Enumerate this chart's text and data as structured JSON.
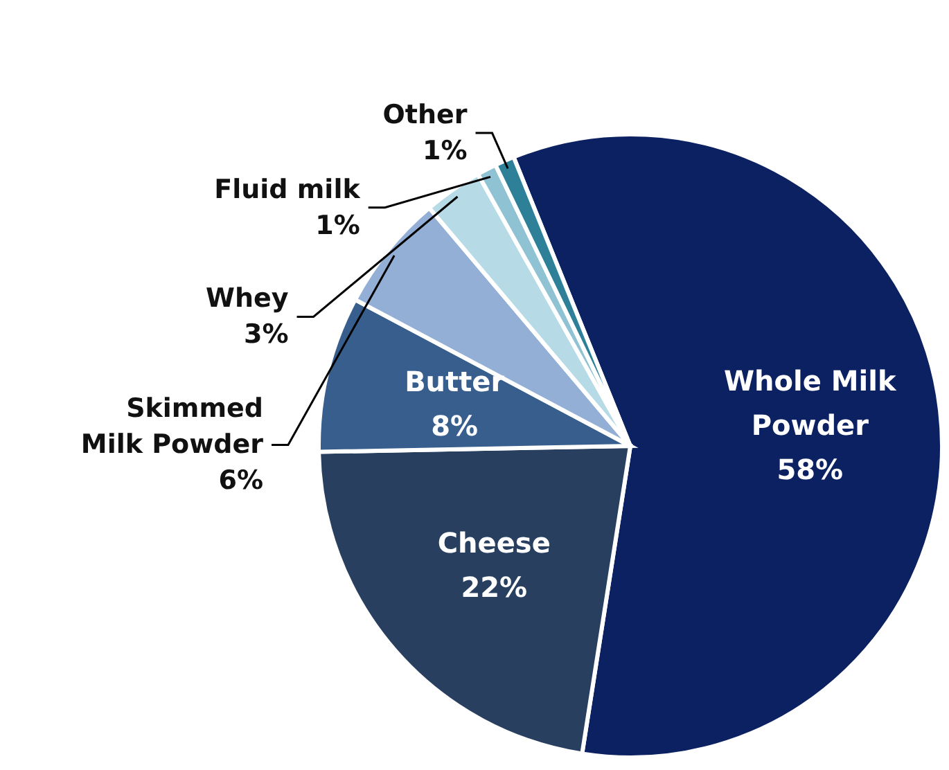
{
  "chart_data": {
    "type": "pie",
    "categories": [
      "Whole Milk Powder",
      "Cheese",
      "Butter",
      "Skimmed Milk Powder",
      "Whey",
      "Fluid milk",
      "Other"
    ],
    "values": [
      58,
      22,
      8,
      6,
      3,
      1,
      1
    ],
    "value_labels": [
      "58%",
      "22%",
      "8%",
      "6%",
      "3%",
      "1%",
      "1%"
    ],
    "colors": [
      "#0c2161",
      "#283f60",
      "#385e8e",
      "#93afd6",
      "#b6dbe6",
      "#8fc3d3",
      "#2e8099"
    ]
  }
}
